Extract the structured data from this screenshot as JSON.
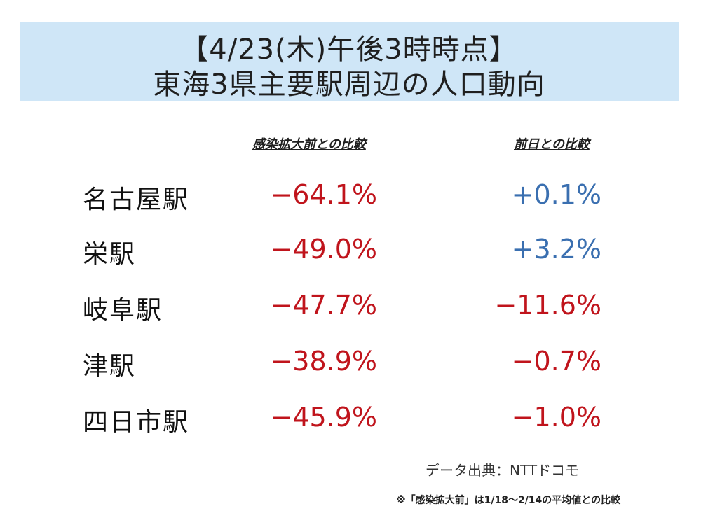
{
  "title": {
    "line1": "【4/23(木)午後3時時点】",
    "line2": "東海3県主要駅周辺の人口動向"
  },
  "columns": {
    "vs_pre_infection": "感染拡大前との比較",
    "vs_previous_day": "前日との比較"
  },
  "rows": [
    {
      "station": "名古屋駅",
      "vs_pre": "−64.1%",
      "vs_prev": "+0.1%"
    },
    {
      "station": "栄駅",
      "vs_pre": "−49.0%",
      "vs_prev": "+3.2%"
    },
    {
      "station": "岐阜駅",
      "vs_pre": "−47.7%",
      "vs_prev": "−11.6%"
    },
    {
      "station": "津駅",
      "vs_pre": "−38.9%",
      "vs_prev": "−0.7%"
    },
    {
      "station": "四日市駅",
      "vs_pre": "−45.9%",
      "vs_prev": "−1.0%"
    }
  ],
  "colors": {
    "negative": "#c0141c",
    "positive": "#3a6fb0",
    "banner": "#cfe6f7"
  },
  "source": "データ出典：NTTドコモ",
  "note": "※「感染拡大前」は1/18〜2/14の平均値との比較"
}
